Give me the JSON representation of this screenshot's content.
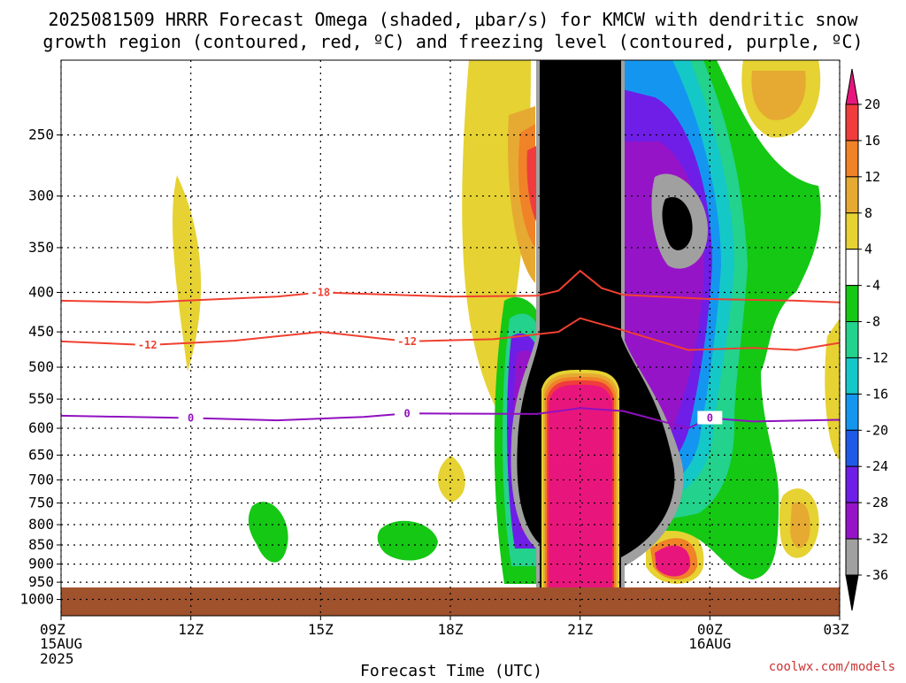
{
  "title_line1": "2025081509 HRRR Forecast Omega (shaded, μbar/s) for KMCW with dendritic snow",
  "title_line2": "growth region (contoured, red, ºC) and freezing level (contoured, purple, ºC)",
  "credit": "coolwx.com/models",
  "chart_data": {
    "type": "heatmap",
    "xlabel": "Forecast Time (UTC)",
    "x_ticks": [
      {
        "hours": 0,
        "label": "09Z",
        "sub": "15AUG",
        "sub2": "2025"
      },
      {
        "hours": 3,
        "label": "12Z",
        "sub": "",
        "sub2": ""
      },
      {
        "hours": 6,
        "label": "15Z",
        "sub": "",
        "sub2": ""
      },
      {
        "hours": 9,
        "label": "18Z",
        "sub": "",
        "sub2": ""
      },
      {
        "hours": 12,
        "label": "21Z",
        "sub": "",
        "sub2": ""
      },
      {
        "hours": 15,
        "label": "00Z",
        "sub": "16AUG",
        "sub2": ""
      },
      {
        "hours": 18,
        "label": "03Z",
        "sub": "",
        "sub2": ""
      }
    ],
    "xlim_hours": [
      0,
      18
    ],
    "y_ticks_hpa": [
      250,
      300,
      350,
      400,
      450,
      500,
      550,
      600,
      650,
      700,
      750,
      800,
      850,
      900,
      950,
      1000
    ],
    "ylim_hpa": [
      200,
      1050
    ],
    "y_scale": "log-pressure",
    "grid": true,
    "surface_pressure_hpa": 965,
    "colorbar": {
      "unit": "μbar/s",
      "labels": [
        "20",
        "16",
        "12",
        "8",
        "4",
        "-4",
        "-8",
        "-12",
        "-16",
        "-20",
        "-24",
        "-28",
        "-32",
        "-36"
      ],
      "colors": [
        "#e8167c",
        "#f03c3c",
        "#f08228",
        "#e6aa32",
        "#e6d232",
        "#ffffff",
        "#14c814",
        "#23d28c",
        "#14c8c8",
        "#1496f0",
        "#1e5ae6",
        "#6e1ee6",
        "#9614c8",
        "#a0a0a0",
        "#000000"
      ]
    },
    "contours": [
      {
        "name": "dendritic-minus18",
        "color": "#f04030",
        "label": "-18",
        "points": [
          [
            0,
            410
          ],
          [
            2,
            412
          ],
          [
            5,
            405
          ],
          [
            6,
            400
          ],
          [
            9,
            405
          ],
          [
            11,
            404
          ],
          [
            11.5,
            398
          ],
          [
            12,
            375
          ],
          [
            12.5,
            395
          ],
          [
            13,
            403
          ],
          [
            15,
            408
          ],
          [
            17,
            410
          ],
          [
            18,
            412
          ]
        ],
        "label_at": [
          6,
          400
        ]
      },
      {
        "name": "dendritic-minus12",
        "color": "#f04030",
        "label": "-12",
        "points": [
          [
            0,
            463
          ],
          [
            2,
            468
          ],
          [
            4,
            462
          ],
          [
            6,
            450
          ],
          [
            8,
            463
          ],
          [
            10,
            460
          ],
          [
            11.5,
            450
          ],
          [
            12,
            432
          ],
          [
            12.5,
            440
          ],
          [
            13,
            448
          ],
          [
            14.5,
            475
          ],
          [
            16,
            472
          ],
          [
            17,
            475
          ],
          [
            18,
            465
          ]
        ],
        "label_at": [
          [
            2,
            468
          ],
          [
            8,
            463
          ]
        ]
      },
      {
        "name": "freezing-level",
        "color": "#9010c0",
        "label": "0",
        "points": [
          [
            0,
            578
          ],
          [
            3,
            582
          ],
          [
            5,
            586
          ],
          [
            7,
            580
          ],
          [
            8,
            574
          ],
          [
            11,
            575
          ],
          [
            12,
            565
          ],
          [
            13,
            570
          ],
          [
            14.5,
            600
          ],
          [
            15,
            582
          ],
          [
            16,
            588
          ],
          [
            18,
            585
          ]
        ],
        "label_at": [
          [
            3,
            582
          ],
          [
            8,
            574
          ],
          [
            15,
            582
          ]
        ]
      }
    ]
  }
}
